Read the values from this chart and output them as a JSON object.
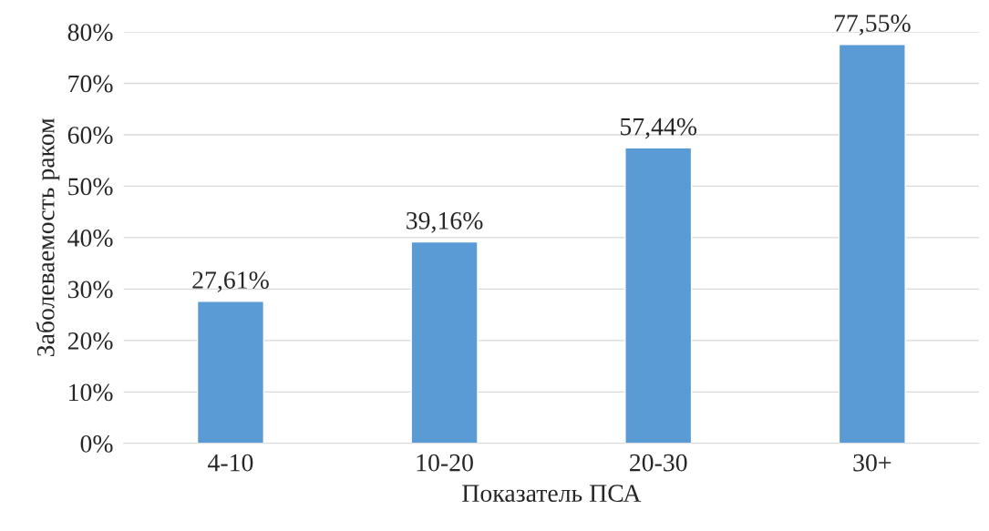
{
  "chart_data": {
    "type": "bar",
    "xlabel": "Показатель ПСА",
    "ylabel": "Заболеваемость раком",
    "categories": [
      "4-10",
      "10-20",
      "20-30",
      "30+"
    ],
    "values": [
      27.61,
      39.16,
      57.44,
      77.55
    ],
    "value_labels": [
      "27,61%",
      "39,16%",
      "57,44%",
      "77,55%"
    ],
    "color": "#5b9bd5",
    "ylim": [
      0,
      80
    ],
    "yticks": [
      {
        "value": 0,
        "label": "0%"
      },
      {
        "value": 10,
        "label": "10%"
      },
      {
        "value": 20,
        "label": "20%"
      },
      {
        "value": 30,
        "label": "30%"
      },
      {
        "value": 40,
        "label": "40%"
      },
      {
        "value": 50,
        "label": "50%"
      },
      {
        "value": 60,
        "label": "60%"
      },
      {
        "value": 70,
        "label": "70%"
      },
      {
        "value": 80,
        "label": "80%"
      }
    ],
    "grid": "y",
    "legend": false
  }
}
